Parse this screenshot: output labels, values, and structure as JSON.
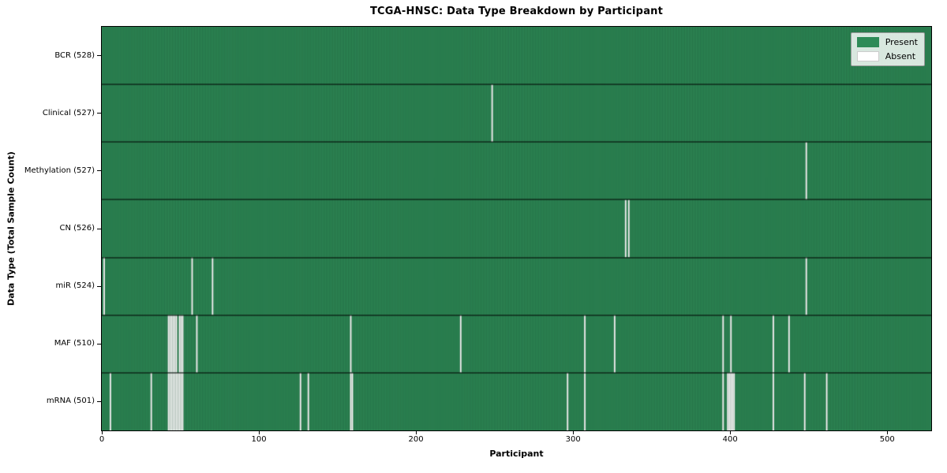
{
  "title": "TCGA-HNSC: Data Type Breakdown by Participant",
  "x_axis": {
    "label": "Participant",
    "ticks": [
      0,
      100,
      200,
      300,
      400,
      500
    ]
  },
  "y_axis": {
    "label": "Data Type (Total Sample Count)"
  },
  "legend": {
    "items": [
      {
        "label": "Present",
        "color": "#2e8b57"
      },
      {
        "label": "Absent",
        "color": "#ffffff"
      }
    ]
  },
  "colors": {
    "present": "#2e8b57",
    "absent": "#ffffff",
    "column_grid": "rgba(0,0,0,0.32)",
    "row_separator": "#000000",
    "plot_border": "#000000",
    "legend_bg": "rgba(255,255,255,0.82)",
    "legend_border": "#999999"
  },
  "chart_data": {
    "type": "heatmap",
    "title": "TCGA-HNSC: Data Type Breakdown by Participant",
    "xlabel": "Participant",
    "ylabel": "Data Type (Total Sample Count)",
    "legend_position": "upper right",
    "value_legend": {
      "present": "Present",
      "absent": "Absent"
    },
    "n_participants": 528,
    "xlim": [
      0,
      528
    ],
    "x_ticks": [
      0,
      100,
      200,
      300,
      400,
      500
    ],
    "grid": false,
    "rows": [
      {
        "label": "BCR (528)",
        "data_type": "BCR",
        "total": 528,
        "absent_participants": []
      },
      {
        "label": "Clinical (527)",
        "data_type": "Clinical",
        "total": 527,
        "absent_participants": [
          248
        ]
      },
      {
        "label": "Methylation (527)",
        "data_type": "Methylation",
        "total": 527,
        "absent_participants": [
          448
        ]
      },
      {
        "label": "CN (526)",
        "data_type": "CN",
        "total": 526,
        "absent_participants": [
          333,
          335
        ]
      },
      {
        "label": "miR (524)",
        "data_type": "miR",
        "total": 524,
        "absent_participants": [
          1,
          57,
          70,
          448
        ]
      },
      {
        "label": "MAF (510)",
        "data_type": "MAF",
        "total": 510,
        "absent_participants": [
          42,
          43,
          44,
          45,
          46,
          47,
          49,
          50,
          51,
          60,
          158,
          228,
          307,
          326,
          395,
          400,
          427,
          437
        ]
      },
      {
        "label": "mRNA (501)",
        "data_type": "mRNA",
        "total": 501,
        "absent_participants": [
          5,
          31,
          42,
          43,
          44,
          45,
          46,
          47,
          48,
          49,
          50,
          51,
          126,
          131,
          158,
          159,
          296,
          307,
          395,
          398,
          399,
          400,
          401,
          402,
          427,
          447,
          461
        ]
      }
    ]
  }
}
